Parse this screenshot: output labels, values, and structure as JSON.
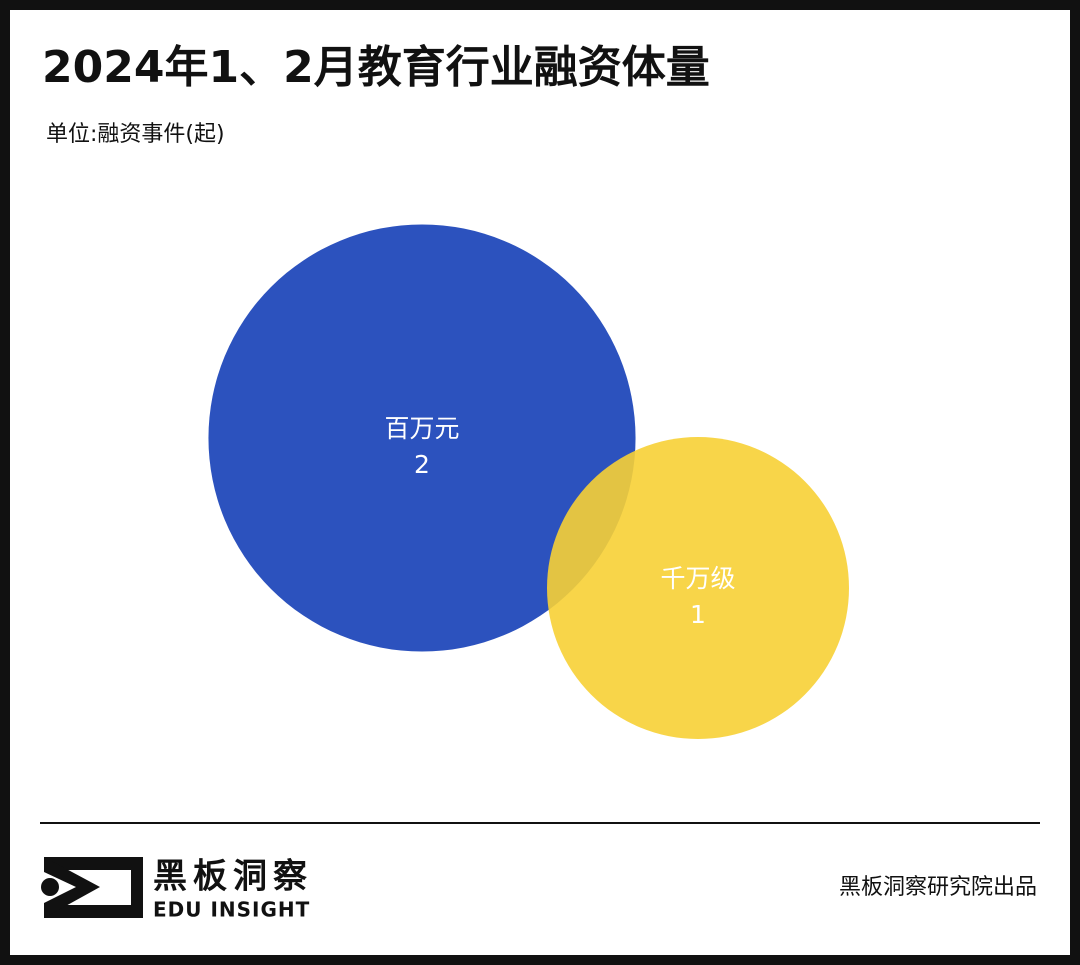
{
  "chart_data": {
    "type": "bubble",
    "title": "2024年1、2月教育行业融资体量",
    "subtitle": "单位:融资事件(起)",
    "categories": [
      "百万元",
      "千万级"
    ],
    "values": [
      2,
      1
    ],
    "colors": [
      "#2c52be",
      "#f7d035"
    ]
  },
  "brand": {
    "name": "黑板洞察",
    "name_en": "EDU INSIGHT"
  },
  "footer": "黑板洞察研究院出品"
}
